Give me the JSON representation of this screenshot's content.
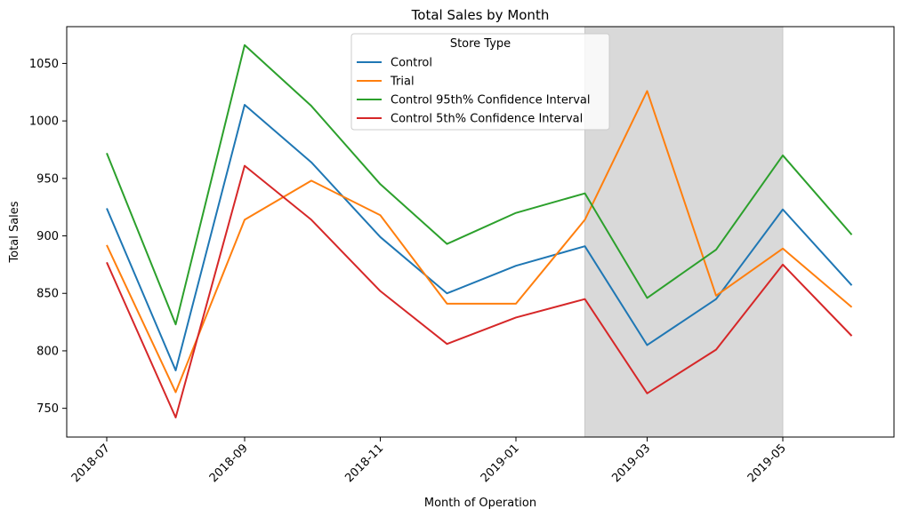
{
  "chart_data": {
    "type": "line",
    "title": "Total Sales by Month",
    "xlabel": "Month of Operation",
    "ylabel": "Total Sales",
    "x": [
      "2018-07",
      "2018-08",
      "2018-09",
      "2018-10",
      "2018-11",
      "2018-12",
      "2019-01",
      "2019-02",
      "2019-03",
      "2019-04",
      "2019-05",
      "2019-06"
    ],
    "x_ticks": [
      "2018-07",
      "2018-09",
      "2018-11",
      "2019-01",
      "2019-03",
      "2019-05"
    ],
    "y_ticks": [
      750,
      800,
      850,
      900,
      950,
      1000,
      1050
    ],
    "ylim": [
      725,
      1082
    ],
    "xlim": [
      "2018-06-13",
      "2019-06-20"
    ],
    "grid": false,
    "shaded_region": {
      "from": "2019-02",
      "to": "2019-05",
      "color": "#d9d9d9"
    },
    "legend": {
      "title": "Store Type",
      "placement": "top-center"
    },
    "series": [
      {
        "name": "Control",
        "color": "#1f77b4",
        "values": [
          924,
          783,
          1014,
          964,
          899,
          850,
          874,
          891,
          805,
          845,
          923,
          857
        ]
      },
      {
        "name": "Trial",
        "color": "#ff7f0e",
        "values": [
          892,
          764,
          914,
          948,
          918,
          841,
          841,
          914,
          1026,
          848,
          889,
          838
        ]
      },
      {
        "name": "Control 95th% Confidence Interval",
        "color": "#2ca02c",
        "values": [
          972,
          823,
          1066,
          1013,
          945,
          893,
          920,
          937,
          846,
          888,
          970,
          901
        ]
      },
      {
        "name": "Control 5th% Confidence Interval",
        "color": "#d62728",
        "values": [
          877,
          742,
          961,
          914,
          852,
          806,
          829,
          845,
          763,
          801,
          875,
          813
        ]
      }
    ]
  }
}
